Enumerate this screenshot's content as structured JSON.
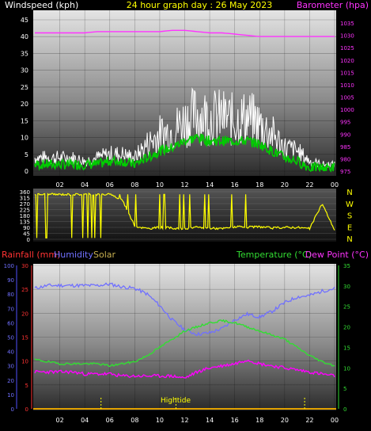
{
  "header": {
    "left": "Windspeed (kph)",
    "center": "24 hour graph day : 26 May 2023",
    "right": "Barometer (hpa)"
  },
  "colors": {
    "wind_avg": "#ffffff",
    "wind_gust": "#00cc00",
    "barometer": "#ff33ff",
    "direction": "#ffff00",
    "humidity": "#7070ff",
    "temperature": "#33dd33",
    "dewpoint": "#ff00ff",
    "rainfall": "#ff3333",
    "solar": "#c8b050",
    "tick_left": "#5050ff",
    "tick_right": "#33dd33"
  },
  "chart_data": [
    {
      "type": "line",
      "title": "24 hour graph day : 26 May 2023",
      "x_ticks": [
        "02",
        "04",
        "06",
        "08",
        "10",
        "12",
        "14",
        "16",
        "18",
        "20",
        "22",
        "00"
      ],
      "y_left_label": "Windspeed (kph)",
      "y_left_ticks": [
        "0",
        "5",
        "10",
        "15",
        "20",
        "25",
        "30",
        "35",
        "40",
        "45"
      ],
      "ylim_left": [
        0,
        45
      ],
      "y_right_label": "Barometer (hpa)",
      "y_right_ticks": [
        "975",
        "980",
        "985",
        "990",
        "995",
        "1000",
        "1005",
        "1010",
        "1015",
        "1020",
        "1025",
        "1030",
        "1035"
      ],
      "ylim_right": [
        975,
        1035
      ],
      "x_hours": [
        1,
        2,
        3,
        4,
        5,
        6,
        7,
        8,
        9,
        10,
        11,
        12,
        13,
        14,
        15,
        16,
        17,
        18,
        19,
        20,
        21,
        22,
        23,
        24
      ],
      "series": [
        {
          "name": "Windspeed",
          "values": [
            4,
            4,
            4,
            3,
            4,
            5,
            5,
            4,
            8,
            11,
            12,
            15,
            17,
            16,
            16,
            15,
            16,
            14,
            11,
            7,
            6,
            3,
            2,
            2
          ]
        },
        {
          "name": "Gust",
          "values": [
            2,
            2,
            2,
            2,
            2,
            3,
            3,
            2,
            4,
            6,
            7,
            9,
            10,
            9,
            9,
            9,
            9,
            8,
            6,
            4,
            3,
            1,
            1,
            1
          ]
        },
        {
          "name": "Barometer",
          "values": [
            1031,
            1031,
            1031,
            1031,
            1031.5,
            1031.5,
            1031.5,
            1031.5,
            1031.5,
            1031.5,
            1032,
            1032,
            1031.5,
            1031,
            1031,
            1030.5,
            1030,
            1029.5,
            1029.5,
            1029.5,
            1029.5,
            1029.5,
            1029.5,
            1029.5
          ]
        }
      ]
    },
    {
      "type": "scatter",
      "y_left_ticks": [
        "360",
        "315",
        "270",
        "225",
        "180",
        "135",
        "90",
        "45",
        "0"
      ],
      "ylim": [
        0,
        360
      ],
      "y_right_ticks": [
        "N",
        "W",
        "S",
        "E",
        "N"
      ],
      "x_hours": [
        0,
        1,
        2,
        3,
        4,
        5,
        6,
        7,
        8,
        9,
        10,
        11,
        12,
        13,
        14,
        15,
        16,
        17,
        18,
        19,
        20,
        21,
        22,
        23,
        24
      ],
      "series": [
        {
          "name": "Wind direction",
          "values": [
            340,
            340,
            340,
            340,
            340,
            340,
            340,
            300,
            100,
            80,
            90,
            85,
            80,
            90,
            85,
            80,
            95,
            90,
            95,
            85,
            90,
            90,
            80,
            270,
            70
          ]
        }
      ]
    },
    {
      "type": "line",
      "x_ticks": [
        "02",
        "04",
        "06",
        "08",
        "10",
        "12",
        "14",
        "16",
        "18",
        "20",
        "22",
        "00"
      ],
      "y_left_ticks": [
        "0",
        "10",
        "20",
        "30",
        "40",
        "50",
        "60",
        "70",
        "80",
        "90",
        "100"
      ],
      "ylim_left": [
        0,
        100
      ],
      "y_left2_ticks": [
        "0",
        "5",
        "10",
        "15",
        "20",
        "25",
        "30"
      ],
      "ylim_left2": [
        0,
        30
      ],
      "y_right_ticks": [
        "0",
        "5",
        "10",
        "15",
        "20",
        "25",
        "30",
        "35"
      ],
      "ylim_right": [
        0,
        35
      ],
      "legend": [
        "Rainfall (mm)",
        "Humidity",
        "Solar",
        "Temperature (°C)",
        "Dew Point (°C)"
      ],
      "annotation": "Hightide",
      "x_hours": [
        0,
        1,
        2,
        3,
        4,
        5,
        6,
        7,
        8,
        9,
        10,
        11,
        12,
        13,
        14,
        15,
        16,
        17,
        18,
        19,
        20,
        21,
        22,
        23,
        24
      ],
      "series": [
        {
          "name": "Humidity",
          "values": [
            84,
            86,
            86,
            86,
            86,
            86,
            87,
            85,
            84,
            80,
            72,
            62,
            55,
            52,
            53,
            56,
            62,
            66,
            64,
            68,
            74,
            78,
            79,
            82,
            84
          ]
        },
        {
          "name": "Temperature (°C)",
          "values": [
            12,
            11.5,
            11,
            11,
            11,
            11,
            10.5,
            11,
            11.5,
            13,
            15,
            17,
            19,
            20,
            21,
            21.5,
            21,
            20,
            19,
            18,
            17,
            15,
            13,
            11.5,
            10.5
          ]
        },
        {
          "name": "Dew Point (°C)",
          "values": [
            9,
            9,
            9,
            9,
            8.5,
            8.5,
            8.5,
            8,
            8,
            8,
            8,
            8,
            7.5,
            9,
            10,
            10.5,
            11,
            12,
            11,
            10.5,
            10,
            9.5,
            9,
            8.5,
            8
          ]
        },
        {
          "name": "Rainfall (mm)",
          "values": [
            0,
            0,
            0,
            0,
            0,
            0,
            0,
            0,
            0,
            0,
            0,
            0,
            0,
            0,
            0,
            0,
            0,
            0,
            0,
            0,
            0,
            0,
            0,
            0,
            0
          ]
        }
      ],
      "tide_marks_hours": [
        5.3,
        11.3,
        21.6
      ]
    }
  ]
}
